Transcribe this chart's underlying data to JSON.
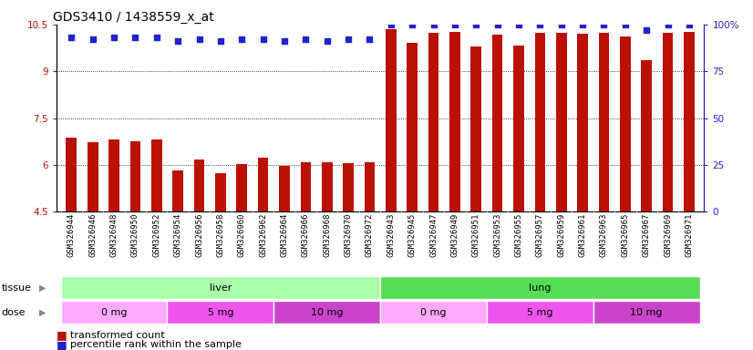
{
  "title": "GDS3410 / 1438559_x_at",
  "samples": [
    "GSM326944",
    "GSM326946",
    "GSM326948",
    "GSM326950",
    "GSM326952",
    "GSM326954",
    "GSM326956",
    "GSM326958",
    "GSM326960",
    "GSM326962",
    "GSM326964",
    "GSM326966",
    "GSM326968",
    "GSM326970",
    "GSM326972",
    "GSM326943",
    "GSM326945",
    "GSM326947",
    "GSM326949",
    "GSM326951",
    "GSM326953",
    "GSM326955",
    "GSM326957",
    "GSM326959",
    "GSM326961",
    "GSM326963",
    "GSM326965",
    "GSM326967",
    "GSM326969",
    "GSM326971"
  ],
  "transformed_count": [
    6.88,
    6.72,
    6.82,
    6.76,
    6.82,
    5.83,
    6.18,
    5.75,
    6.02,
    6.22,
    5.97,
    6.08,
    6.08,
    6.07,
    6.1,
    10.35,
    9.9,
    10.22,
    10.25,
    9.8,
    10.18,
    9.83,
    10.22,
    10.22,
    10.2,
    10.22,
    10.12,
    9.35,
    10.22,
    10.25
  ],
  "percentile_rank": [
    93,
    92,
    93,
    93,
    93,
    91,
    92,
    91,
    92,
    92,
    91,
    92,
    91,
    92,
    92,
    100,
    100,
    100,
    100,
    100,
    100,
    100,
    100,
    100,
    100,
    100,
    100,
    97,
    100,
    100
  ],
  "bar_color": "#bb1100",
  "dot_color": "#2222cc",
  "ylim_left": [
    4.5,
    10.5
  ],
  "ylim_right": [
    0,
    100
  ],
  "yticks_left": [
    4.5,
    6.0,
    7.5,
    9.0,
    10.5
  ],
  "yticks_right": [
    0,
    25,
    50,
    75,
    100
  ],
  "ytick_labels_left": [
    "4.5",
    "6",
    "7.5",
    "9",
    "10.5"
  ],
  "ytick_labels_right": [
    "0",
    "25",
    "50",
    "75",
    "100%"
  ],
  "grid_lines": [
    6.0,
    7.5,
    9.0
  ],
  "tissue_groups": [
    {
      "label": "liver",
      "start": 0,
      "end": 14,
      "color": "#aaffaa"
    },
    {
      "label": "lung",
      "start": 15,
      "end": 29,
      "color": "#55dd55"
    }
  ],
  "dose_groups": [
    {
      "label": "0 mg",
      "start": 0,
      "end": 4,
      "color": "#ffaaff"
    },
    {
      "label": "5 mg",
      "start": 5,
      "end": 9,
      "color": "#ee55ee"
    },
    {
      "label": "10 mg",
      "start": 10,
      "end": 14,
      "color": "#cc44cc"
    },
    {
      "label": "0 mg",
      "start": 15,
      "end": 19,
      "color": "#ffaaff"
    },
    {
      "label": "5 mg",
      "start": 20,
      "end": 24,
      "color": "#ee55ee"
    },
    {
      "label": "10 mg",
      "start": 25,
      "end": 29,
      "color": "#cc44cc"
    }
  ],
  "title_fontsize": 10,
  "tick_fontsize": 7.5,
  "bar_width": 0.5,
  "xlabel_fontsize": 6.5,
  "band_label_fontsize": 8,
  "legend_fontsize": 8
}
